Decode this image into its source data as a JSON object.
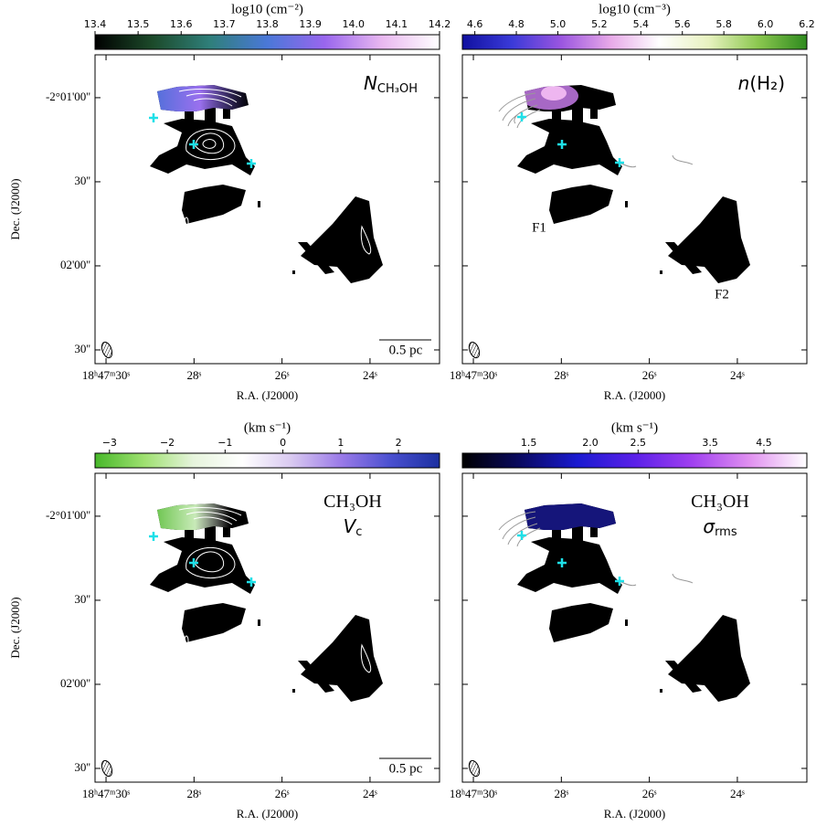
{
  "chart_data": [
    {
      "type": "map",
      "colorbar": {
        "label": "log10 (cm⁻²)",
        "clim": [
          13.4,
          14.2
        ],
        "scale": "linear",
        "colors": [
          "#000000",
          "#1c4a2a",
          "#2f7f7a",
          "#4a78d8",
          "#9966ee",
          "#e9b8f0",
          "#ffffff"
        ],
        "ticks": [
          13.4,
          13.5,
          13.6,
          13.7,
          13.8,
          13.9,
          {
            "value": 14,
            "label": "14.0"
          },
          14.1,
          14.2
        ]
      },
      "annotation": [
        {
          "main": "N",
          "sub": "CH₃OH"
        }
      ],
      "xlabel": "R.A. (J2000)",
      "ylabel": "Dec. (J2000)",
      "xlim": [
        30.25,
        22.42
      ],
      "xticks": [
        {
          "value": 30,
          "label": "18ʰ47ᵐ30ˢ"
        },
        {
          "value": 28,
          "label": "28ˢ"
        },
        {
          "value": 26,
          "label": "26ˢ"
        },
        {
          "value": 24,
          "label": "24ˢ"
        }
      ],
      "ylim": [
        -7354.9,
        -7244.7
      ],
      "yticks": [
        {
          "value": -7260,
          "label": "-2°01'00''"
        },
        {
          "value": -7290,
          "label": "30''"
        },
        {
          "value": -7320,
          "label": "02'00''"
        },
        {
          "value": -7350,
          "label": "30''"
        }
      ],
      "scalebar": "0.5 pc"
    },
    {
      "type": "map",
      "colorbar": {
        "label": "log10 (cm⁻³)",
        "clim": [
          4.54,
          6.2
        ],
        "scale": "linear",
        "colors": [
          "#1010a0",
          "#3a3ad8",
          "#9a55e0",
          "#e7a8e8",
          "#ffffff",
          "#e8f2c0",
          "#8cc850",
          "#2e8a1e"
        ],
        "ticks": [
          4.6,
          4.8,
          {
            "value": 5,
            "label": "5.0"
          },
          5.2,
          5.4,
          5.6,
          5.8,
          {
            "value": 6,
            "label": "6.0"
          },
          6.2
        ]
      },
      "annotation": [
        {
          "main": "n",
          "rest": "(H₂)"
        }
      ],
      "xlabel": "R.A. (J2000)",
      "xlim": [
        30.25,
        22.42
      ],
      "xticks": [
        {
          "value": 30,
          "label": "18ʰ47ᵐ30ˢ"
        },
        {
          "value": 28,
          "label": "28ˢ"
        },
        {
          "value": 26,
          "label": "26ˢ"
        },
        {
          "value": 24,
          "label": "24ˢ"
        }
      ],
      "ylim": [
        -7354.9,
        -7244.7
      ],
      "labels": [
        "F1",
        "F2"
      ]
    },
    {
      "type": "map",
      "colorbar": {
        "label": "(km s⁻¹)",
        "clim": [
          -3.25,
          2.71
        ],
        "scale": "linear",
        "colors": [
          "#48b82a",
          "#9ee070",
          "#e6f4dc",
          "#ffffff",
          "#d8c8f0",
          "#9a7ae8",
          "#4a50d0",
          "#1b2fa0"
        ],
        "ticks": [
          {
            "value": -3,
            "label": "−3"
          },
          {
            "value": -2,
            "label": "−2"
          },
          {
            "value": -1,
            "label": "−1"
          },
          0,
          1,
          2
        ]
      },
      "annotation": [
        {
          "main": "CH₃OH"
        },
        {
          "main": "V",
          "sub": "c"
        }
      ],
      "xlabel": "R.A. (J2000)",
      "ylabel": "Dec. (J2000)",
      "xlim": [
        30.25,
        22.42
      ],
      "xticks": [
        {
          "value": 30,
          "label": "18ʰ47ᵐ30ˢ"
        },
        {
          "value": 28,
          "label": "28ˢ"
        },
        {
          "value": 26,
          "label": "26ˢ"
        },
        {
          "value": 24,
          "label": "24ˢ"
        }
      ],
      "ylim": [
        -7354.9,
        -7244.7
      ],
      "yticks": [
        {
          "value": -7260,
          "label": "-2°01'00''"
        },
        {
          "value": -7290,
          "label": "30''"
        },
        {
          "value": -7320,
          "label": "02'00''"
        },
        {
          "value": -7350,
          "label": "30''"
        }
      ],
      "scalebar": "0.5 pc"
    },
    {
      "type": "map",
      "colorbar": {
        "label": "(km s⁻¹)",
        "clim": [
          1.1,
          5.5
        ],
        "scale": "log",
        "colors": [
          "#000000",
          "#0a0a60",
          "#1a1ad0",
          "#5a20e8",
          "#a040f0",
          "#e090f0",
          "#ffffff"
        ],
        "ticks": [
          1.5,
          {
            "value": 2,
            "label": "2.0"
          },
          2.5,
          3.5,
          4.5
        ]
      },
      "annotation": [
        {
          "main": "CH₃OH"
        },
        {
          "main": "σ",
          "sub": "rms"
        }
      ],
      "xlabel": "R.A. (J2000)",
      "xlim": [
        30.25,
        22.42
      ],
      "xticks": [
        {
          "value": 30,
          "label": "18ʰ47ᵐ30ˢ"
        },
        {
          "value": 28,
          "label": "28ˢ"
        },
        {
          "value": 26,
          "label": "26ˢ"
        },
        {
          "value": 24,
          "label": "24ˢ"
        }
      ],
      "ylim": [
        -7354.9,
        -7244.7
      ]
    }
  ]
}
